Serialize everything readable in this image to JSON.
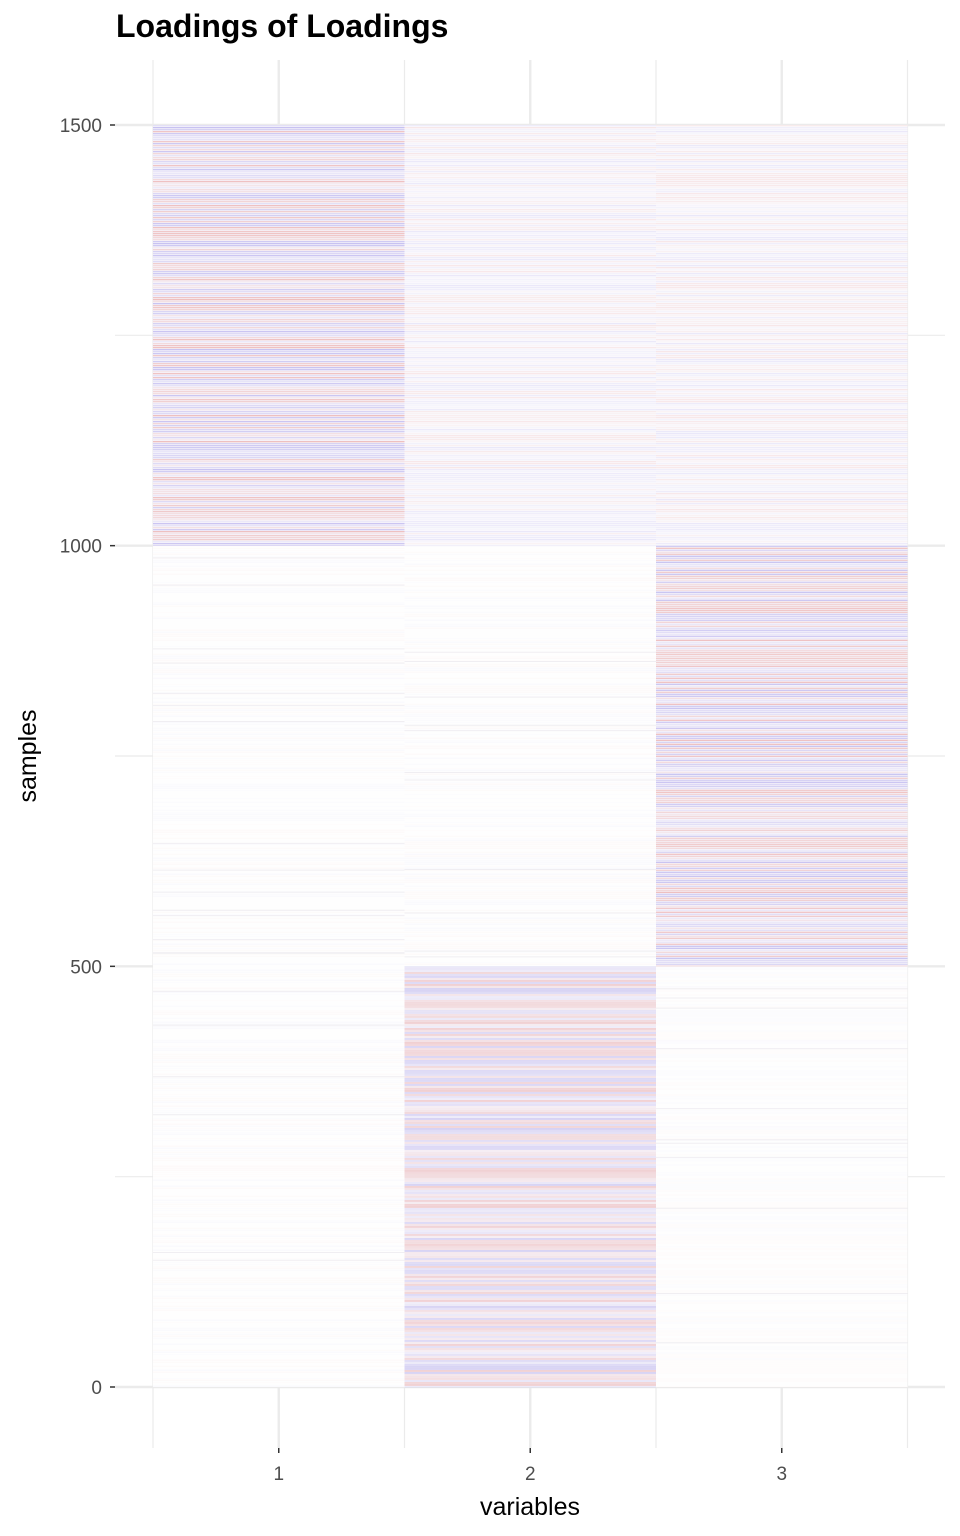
{
  "chart_data": {
    "type": "heatmap",
    "title": "Loadings of Loadings",
    "xlabel": "variables",
    "ylabel": "samples",
    "x_categories": [
      "1",
      "2",
      "3"
    ],
    "y_ticks": [
      0,
      500,
      1000,
      1500
    ],
    "ylim": [
      0,
      1500
    ],
    "grid": true,
    "legend": "none",
    "colors": {
      "positive": "#d7301f",
      "negative": "#4a3bd6",
      "neutral": "#ffffff",
      "grid": "#ebebeb"
    },
    "blocks": [
      {
        "variable": "1",
        "samples": [
          1000,
          1500
        ],
        "loading": "strong"
      },
      {
        "variable": "1",
        "samples": [
          0,
          1000
        ],
        "loading": "near-zero"
      },
      {
        "variable": "2",
        "samples": [
          0,
          500
        ],
        "loading": "strong"
      },
      {
        "variable": "2",
        "samples": [
          1000,
          1500
        ],
        "loading": "weak"
      },
      {
        "variable": "2",
        "samples": [
          500,
          1000
        ],
        "loading": "near-zero"
      },
      {
        "variable": "3",
        "samples": [
          500,
          1000
        ],
        "loading": "strong"
      },
      {
        "variable": "3",
        "samples": [
          1000,
          1500
        ],
        "loading": "weak"
      },
      {
        "variable": "3",
        "samples": [
          0,
          500
        ],
        "loading": "near-zero"
      }
    ]
  }
}
